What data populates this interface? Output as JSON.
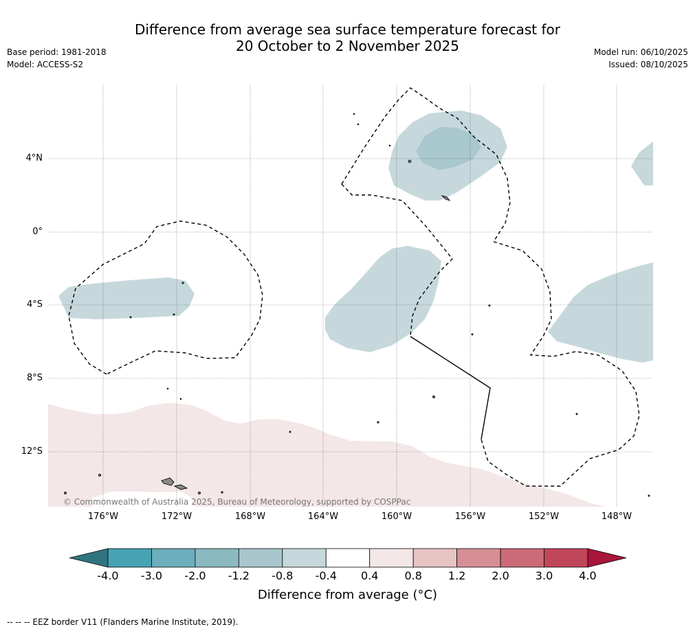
{
  "title": {
    "line1": "Difference from average sea surface temperature forecast for",
    "line2": "20 October to 2 November 2025"
  },
  "meta": {
    "base_period": "Base period: 1981-2018",
    "model": "Model: ACCESS-S2",
    "model_run": "Model run: 06/10/2025",
    "issued": "Issued: 08/10/2025"
  },
  "map": {
    "lat_labels": [
      "4°N",
      "0°",
      "4°S",
      "8°S",
      "12°S"
    ],
    "lon_labels": [
      "176°W",
      "172°W",
      "168°W",
      "164°W",
      "160°W",
      "156°W",
      "152°W",
      "148°W"
    ],
    "copyright": "© Commonwealth of Australia 2025, Bureau of Meteorology, supported by COSPPac",
    "colors": {
      "cool_anomaly": "#c6d8dc",
      "cool_anomaly_core": "#a9c8cd",
      "warm_anomaly": "#f4e7e7",
      "land": "#8a8a8a"
    }
  },
  "colorbar": {
    "labels": [
      "-4.0",
      "-3.0",
      "-2.0",
      "-1.2",
      "-0.8",
      "-0.4",
      "0.4",
      "0.8",
      "1.2",
      "2.0",
      "3.0",
      "4.0"
    ],
    "colors": [
      "#2f7480",
      "#47a2b3",
      "#6caebc",
      "#8bb9c0",
      "#a9c6cc",
      "#c6d8dc",
      "#ffffff",
      "#f4e7e7",
      "#e6c4c2",
      "#d68e95",
      "#cb6b78",
      "#c1465a",
      "#a8163c"
    ],
    "title": "Difference from average (°C)"
  },
  "footnote": "--  --  -- EEZ border V11 (Flanders Marine Institute, 2019)."
}
